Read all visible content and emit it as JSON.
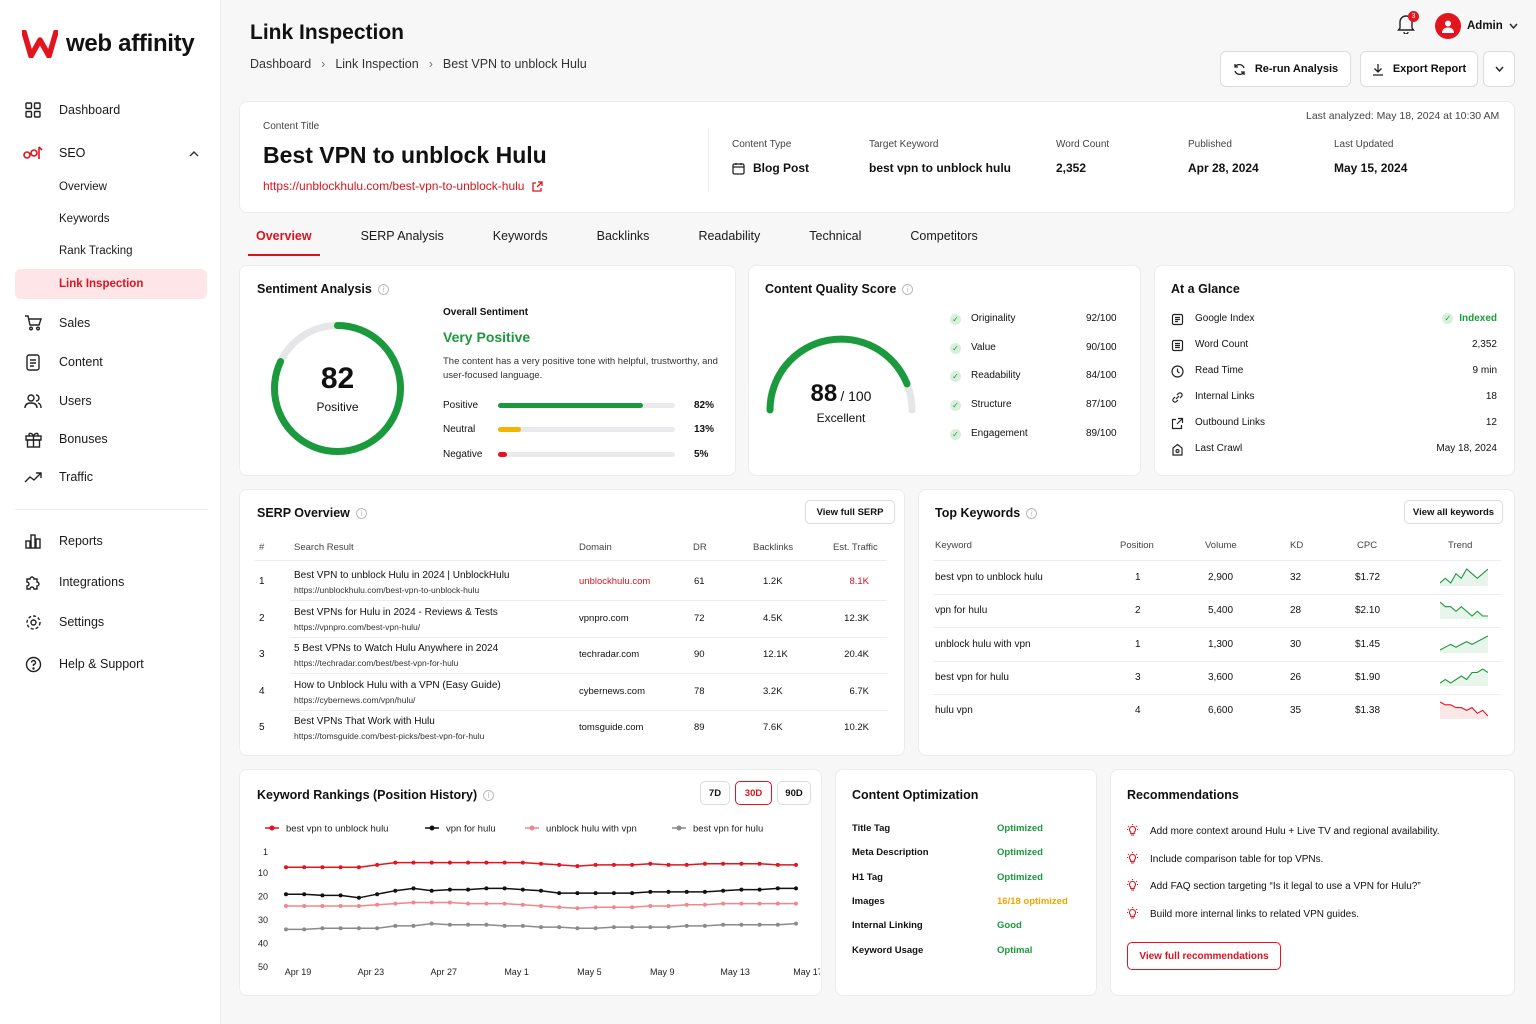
{
  "brand": {
    "name": "web affinity",
    "accent": "#e3141e"
  },
  "sidebar": {
    "items": [
      {
        "label": "Dashboard",
        "icon": "grid-icon"
      },
      {
        "label": "SEO",
        "icon": "seo-icon"
      },
      {
        "label": "Overview"
      },
      {
        "label": "Keywords"
      },
      {
        "label": "Rank Tracking"
      },
      {
        "label": "Link Inspection"
      },
      {
        "label": "Sales",
        "icon": "cart-icon"
      },
      {
        "label": "Content",
        "icon": "document-icon"
      },
      {
        "label": "Users",
        "icon": "users-icon"
      },
      {
        "label": "Bonuses",
        "icon": "gift-icon"
      },
      {
        "label": "Traffic",
        "icon": "trend-icon"
      },
      {
        "label": "Reports",
        "icon": "bar-chart-icon"
      },
      {
        "label": "Integrations",
        "icon": "puzzle-icon"
      },
      {
        "label": "Settings",
        "icon": "gear-icon"
      },
      {
        "label": "Help & Support",
        "icon": "help-icon"
      }
    ]
  },
  "header": {
    "title": "Link Inspection",
    "breadcrumb": [
      "Dashboard",
      "Link Inspection",
      "Best VPN to unblock Hulu"
    ],
    "notifications": "3",
    "user": "Admin",
    "rerun_label": "Re-run Analysis",
    "export_label": "Export Report"
  },
  "content": {
    "title_label": "Content Title",
    "title": "Best VPN to unblock Hulu",
    "url": "https://unblockhulu.com/best-vpn-to-unblock-hulu",
    "last_analyzed": "Last analyzed: May 18, 2024 at 10:30 AM",
    "meta": [
      {
        "label": "Content Type",
        "value": "Blog Post"
      },
      {
        "label": "Target Keyword",
        "value": "best vpn to unblock hulu"
      },
      {
        "label": "Word Count",
        "value": "2,352"
      },
      {
        "label": "Published",
        "value": "Apr 28, 2024"
      },
      {
        "label": "Last Updated",
        "value": "May 15, 2024"
      }
    ]
  },
  "tabs": [
    "Overview",
    "SERP Analysis",
    "Keywords",
    "Backlinks",
    "Readability",
    "Technical",
    "Competitors"
  ],
  "sentiment": {
    "title": "Sentiment Analysis",
    "score": "82",
    "score_value": 82,
    "score_label": "Positive",
    "overall_label": "Overall Sentiment",
    "overall": "Very Positive",
    "description": "The content has a very positive tone with helpful, trustworthy, and user-focused language.",
    "bars": [
      {
        "label": "Positive",
        "value": "82%",
        "pct": 82,
        "color": "#1a9a3c"
      },
      {
        "label": "Neutral",
        "value": "13%",
        "pct": 13,
        "color": "#f5b400"
      },
      {
        "label": "Negative",
        "value": "5%",
        "pct": 5,
        "color": "#e3141e"
      }
    ]
  },
  "quality": {
    "title": "Content Quality Score",
    "score": "88",
    "score_value": 88,
    "out_of": "/ 100",
    "rating": "Excellent",
    "items": [
      {
        "label": "Originality",
        "value": "92/100"
      },
      {
        "label": "Value",
        "value": "90/100"
      },
      {
        "label": "Readability",
        "value": "84/100"
      },
      {
        "label": "Structure",
        "value": "87/100"
      },
      {
        "label": "Engagement",
        "value": "89/100"
      }
    ]
  },
  "glance": {
    "title": "At a Glance",
    "items": [
      {
        "label": "Google Index",
        "value": "Indexed",
        "icon": "index-icon"
      },
      {
        "label": "Word Count",
        "value": "2,352",
        "icon": "list-icon"
      },
      {
        "label": "Read Time",
        "value": "9 min",
        "icon": "clock-icon"
      },
      {
        "label": "Internal Links",
        "value": "18",
        "icon": "link-icon"
      },
      {
        "label": "Outbound Links",
        "value": "12",
        "icon": "external-link-icon"
      },
      {
        "label": "Last Crawl",
        "value": "May 18, 2024",
        "icon": "crawl-icon"
      }
    ]
  },
  "serp": {
    "title": "SERP Overview",
    "button": "View full SERP",
    "headers": [
      "#",
      "Search Result",
      "Domain",
      "DR",
      "Backlinks",
      "Est. Traffic"
    ],
    "rows": [
      {
        "n": "1",
        "title": "Best VPN to unblock Hulu in 2024 | UnblockHulu",
        "url": "https://unblockhulu.com/best-vpn-to-unblock-hulu",
        "domain": "unblockhulu.com",
        "dr": "61",
        "backlinks": "1.2K",
        "traffic": "8.1K"
      },
      {
        "n": "2",
        "title": "Best VPNs for Hulu in 2024 - Reviews & Tests",
        "url": "https://vpnpro.com/best-vpn-hulu/",
        "domain": "vpnpro.com",
        "dr": "72",
        "backlinks": "4.5K",
        "traffic": "12.3K"
      },
      {
        "n": "3",
        "title": "5 Best VPNs to Watch Hulu Anywhere in 2024",
        "url": "https://techradar.com/best/best-vpn-for-hulu",
        "domain": "techradar.com",
        "dr": "90",
        "backlinks": "12.1K",
        "traffic": "20.4K"
      },
      {
        "n": "4",
        "title": "How to Unblock Hulu with a VPN (Easy Guide)",
        "url": "https://cybernews.com/vpn/hulu/",
        "domain": "cybernews.com",
        "dr": "78",
        "backlinks": "3.2K",
        "traffic": "6.7K"
      },
      {
        "n": "5",
        "title": "Best VPNs That Work with Hulu",
        "url": "https://tomsguide.com/best-picks/best-vpn-for-hulu",
        "domain": "tomsguide.com",
        "dr": "89",
        "backlinks": "7.6K",
        "traffic": "10.2K"
      }
    ]
  },
  "top_keywords": {
    "title": "Top Keywords",
    "button": "View all keywords",
    "headers": [
      "Keyword",
      "Position",
      "Volume",
      "KD",
      "CPC",
      "Trend"
    ],
    "rows": [
      {
        "keyword": "best vpn to unblock hulu",
        "position": "1",
        "volume": "2,900",
        "kd": "32",
        "cpc": "$1.72",
        "trend": [
          4,
          5,
          4,
          6,
          5,
          7,
          6,
          5,
          6,
          7
        ],
        "color": "#1a9a3c"
      },
      {
        "keyword": "vpn for hulu",
        "position": "2",
        "volume": "5,400",
        "kd": "28",
        "cpc": "$2.10",
        "trend": [
          7,
          6,
          6,
          5,
          6,
          5,
          4,
          5,
          4,
          4
        ],
        "color": "#1a9a3c"
      },
      {
        "keyword": "unblock hulu with vpn",
        "position": "1",
        "volume": "1,300",
        "kd": "30",
        "cpc": "$1.45",
        "trend": [
          3,
          4,
          5,
          4,
          5,
          6,
          5,
          6,
          7,
          8
        ],
        "color": "#1a9a3c"
      },
      {
        "keyword": "best vpn for hulu",
        "position": "3",
        "volume": "3,600",
        "kd": "26",
        "cpc": "$1.90",
        "trend": [
          3,
          4,
          3,
          4,
          5,
          4,
          6,
          6,
          7,
          6
        ],
        "color": "#1a9a3c"
      },
      {
        "keyword": "hulu vpn",
        "position": "4",
        "volume": "6,600",
        "kd": "35",
        "cpc": "$1.38",
        "trend": [
          7,
          6,
          6,
          5,
          5,
          4,
          5,
          3,
          4,
          2
        ],
        "color": "#e3141e"
      }
    ]
  },
  "rankings": {
    "title": "Keyword Rankings (Position History)",
    "ranges": [
      "7D",
      "30D",
      "90D"
    ],
    "active_range": "30D"
  },
  "chart_data": {
    "type": "line",
    "title": "Keyword Rankings (Position History)",
    "x": [
      "Apr 19",
      "Apr 20",
      "Apr 21",
      "Apr 22",
      "Apr 23",
      "Apr 24",
      "Apr 25",
      "Apr 26",
      "Apr 27",
      "Apr 28",
      "Apr 29",
      "Apr 30",
      "May 1",
      "May 2",
      "May 3",
      "May 4",
      "May 5",
      "May 6",
      "May 7",
      "May 8",
      "May 9",
      "May 10",
      "May 11",
      "May 12",
      "May 13",
      "May 14",
      "May 15",
      "May 16",
      "May 17"
    ],
    "x_ticks": [
      "Apr 19",
      "Apr 23",
      "Apr 27",
      "May 1",
      "May 5",
      "May 9",
      "May 13",
      "May 17"
    ],
    "y_ticks": [
      1,
      10,
      20,
      30,
      40,
      50
    ],
    "ylim": [
      1,
      50
    ],
    "y_inverted": true,
    "legend_position": "top",
    "series": [
      {
        "name": "best vpn to unblock hulu",
        "color": "#e3141e",
        "values": [
          7.5,
          7.5,
          7.5,
          7.5,
          7.5,
          6.5,
          5.5,
          5.5,
          5.5,
          5.5,
          5.5,
          5.5,
          5.5,
          5.5,
          6,
          6.5,
          7,
          6.5,
          6.5,
          6.5,
          6,
          6.5,
          6.5,
          6,
          6,
          6,
          6,
          6.5,
          6.5
        ]
      },
      {
        "name": "vpn for hulu",
        "color": "#111111",
        "values": [
          19,
          19,
          19.5,
          19.5,
          20.5,
          19,
          17.5,
          16.5,
          17.5,
          17,
          17,
          16.5,
          16.5,
          17,
          17.5,
          18.5,
          18.5,
          18.5,
          18.5,
          18.5,
          18,
          18,
          18,
          18,
          17.5,
          17,
          17,
          16.5,
          16.5
        ]
      },
      {
        "name": "unblock hulu with vpn",
        "color": "#f2868c",
        "values": [
          24,
          24,
          24,
          24,
          24,
          23.5,
          23,
          22.5,
          22.5,
          22.5,
          23,
          23,
          23,
          23.5,
          24,
          24.5,
          25,
          24.5,
          24.5,
          24.5,
          24,
          24,
          23.5,
          23.5,
          23,
          23,
          23,
          23,
          23
        ]
      },
      {
        "name": "best vpn for hulu",
        "color": "#8a8a8a",
        "values": [
          34,
          34,
          33.5,
          33.5,
          33.5,
          33.5,
          32.5,
          32.5,
          31.5,
          32,
          32,
          32,
          32.5,
          32.5,
          33,
          33,
          33.5,
          33.5,
          33,
          33,
          33,
          33,
          32.5,
          32.5,
          32,
          32,
          32,
          32,
          31.5
        ]
      }
    ]
  },
  "optimization": {
    "title": "Content Optimization",
    "items": [
      {
        "label": "Title Tag",
        "value": "Optimized",
        "color": "#1a9a3c"
      },
      {
        "label": "Meta Description",
        "value": "Optimized",
        "color": "#1a9a3c"
      },
      {
        "label": "H1 Tag",
        "value": "Optimized",
        "color": "#1a9a3c"
      },
      {
        "label": "Images",
        "value": "16/18 optimized",
        "color": "#f5a300"
      },
      {
        "label": "Internal Linking",
        "value": "Good",
        "color": "#1a9a3c"
      },
      {
        "label": "Keyword Usage",
        "value": "Optimal",
        "color": "#1a9a3c"
      }
    ]
  },
  "recommendations": {
    "title": "Recommendations",
    "items": [
      "Add more context around Hulu + Live TV and regional availability.",
      "Include comparison table for top VPNs.",
      "Add FAQ section targeting “Is it legal to use a VPN for Hulu?”",
      "Build more internal links to related VPN guides."
    ],
    "button": "View full recommendations"
  }
}
